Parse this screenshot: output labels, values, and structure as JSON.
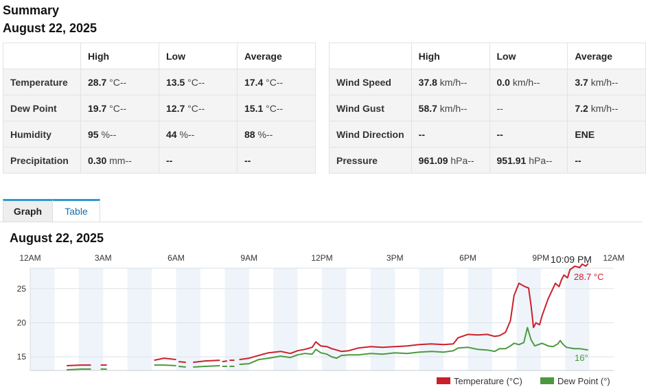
{
  "summary": {
    "title": "Summary",
    "date": "August 22, 2025",
    "columns": [
      "High",
      "Low",
      "Average"
    ],
    "left_rows": [
      {
        "label": "Temperature",
        "high": {
          "v": "28.7",
          "u": "°C--"
        },
        "low": {
          "v": "13.5",
          "u": "°C--"
        },
        "avg": {
          "v": "17.4",
          "u": "°C--"
        }
      },
      {
        "label": "Dew Point",
        "high": {
          "v": "19.7",
          "u": "°C--"
        },
        "low": {
          "v": "12.7",
          "u": "°C--"
        },
        "avg": {
          "v": "15.1",
          "u": "°C--"
        }
      },
      {
        "label": "Humidity",
        "high": {
          "v": "95",
          "u": "%--"
        },
        "low": {
          "v": "44",
          "u": "%--"
        },
        "avg": {
          "v": "88",
          "u": "%--"
        }
      },
      {
        "label": "Precipitation",
        "high": {
          "v": "0.30",
          "u": "mm--"
        },
        "low": {
          "v": "--",
          "u": ""
        },
        "avg": {
          "v": "--",
          "u": ""
        }
      }
    ],
    "right_rows": [
      {
        "label": "Wind Speed",
        "high": {
          "v": "37.8",
          "u": "km/h--"
        },
        "low": {
          "v": "0.0",
          "u": "km/h--"
        },
        "avg": {
          "v": "3.7",
          "u": "km/h--"
        }
      },
      {
        "label": "Wind Gust",
        "high": {
          "v": "58.7",
          "u": "km/h--"
        },
        "low": {
          "v": "",
          "u": "--"
        },
        "avg": {
          "v": "7.2",
          "u": "km/h--"
        }
      },
      {
        "label": "Wind Direction",
        "high": {
          "v": "--",
          "u": ""
        },
        "low": {
          "v": "--",
          "u": ""
        },
        "avg": {
          "v": "ENE",
          "u": ""
        }
      },
      {
        "label": "Pressure",
        "high": {
          "v": "961.09",
          "u": "hPa--"
        },
        "low": {
          "v": "951.91",
          "u": "hPa--"
        },
        "avg": {
          "v": "--",
          "u": ""
        }
      }
    ]
  },
  "tabs": {
    "graph": "Graph",
    "table": "Table",
    "active": "Graph"
  },
  "graph": {
    "title": "August 22, 2025",
    "time_labels": [
      "12AM",
      "3AM",
      "6AM",
      "9AM",
      "12PM",
      "3PM",
      "6PM",
      "9PM",
      "12AM"
    ],
    "current_time": "10:09 PM",
    "temp_end_label": "28.7 °C",
    "dew_end_label": "16°",
    "legend": {
      "temperature": "Temperature (°C)",
      "dew_point": "Dew Point (°)"
    },
    "colors": {
      "temperature": "#cc1f2a",
      "dew_point": "#4a9a3c",
      "band": "#eef4fa"
    }
  },
  "chart_data": {
    "type": "line",
    "x_unit": "hours since 12AM",
    "xlim": [
      0,
      24
    ],
    "ylim": [
      13,
      28
    ],
    "yticks": [
      15,
      20,
      25
    ],
    "series": [
      {
        "name": "Temperature (°C)",
        "color": "#cc1f2a",
        "segments": [
          [
            [
              1.5,
              13.7
            ],
            [
              2.1,
              13.8
            ],
            [
              2.5,
              13.8
            ]
          ],
          [
            [
              2.9,
              13.8
            ],
            [
              3.15,
              13.8
            ]
          ],
          [
            [
              5.1,
              14.5
            ],
            [
              5.5,
              14.8
            ],
            [
              6.0,
              14.6
            ]
          ],
          [
            [
              6.1,
              14.3
            ],
            [
              6.4,
              14.2
            ]
          ],
          [
            [
              6.7,
              14.2
            ],
            [
              7.2,
              14.4
            ],
            [
              7.8,
              14.5
            ]
          ],
          [
            [
              7.9,
              14.3
            ],
            [
              8.1,
              14.4
            ]
          ],
          [
            [
              8.2,
              14.5
            ],
            [
              8.4,
              14.5
            ]
          ],
          [
            [
              8.6,
              14.6
            ],
            [
              9.0,
              14.8
            ],
            [
              9.4,
              15.2
            ],
            [
              9.8,
              15.6
            ],
            [
              10.3,
              15.8
            ],
            [
              10.7,
              15.5
            ],
            [
              11.0,
              15.9
            ],
            [
              11.3,
              16.1
            ],
            [
              11.6,
              16.4
            ],
            [
              11.75,
              17.2
            ],
            [
              11.95,
              16.6
            ],
            [
              12.2,
              16.5
            ],
            [
              12.4,
              16.2
            ],
            [
              12.6,
              16.0
            ],
            [
              12.8,
              15.8
            ],
            [
              13.1,
              15.9
            ],
            [
              13.5,
              16.3
            ],
            [
              14.0,
              16.5
            ],
            [
              14.5,
              16.4
            ],
            [
              15.0,
              16.5
            ],
            [
              15.5,
              16.6
            ],
            [
              16.0,
              16.8
            ],
            [
              16.5,
              16.9
            ],
            [
              17.0,
              16.8
            ],
            [
              17.4,
              16.9
            ],
            [
              17.6,
              17.8
            ],
            [
              18.0,
              18.3
            ],
            [
              18.4,
              18.2
            ],
            [
              18.8,
              18.3
            ],
            [
              19.1,
              18.0
            ],
            [
              19.3,
              18.1
            ],
            [
              19.55,
              18.6
            ],
            [
              19.75,
              20.3
            ],
            [
              19.9,
              24.0
            ],
            [
              20.1,
              25.8
            ],
            [
              20.35,
              25.3
            ],
            [
              20.5,
              25.1
            ],
            [
              20.6,
              22.5
            ],
            [
              20.7,
              19.3
            ],
            [
              20.8,
              20.0
            ],
            [
              20.95,
              19.7
            ],
            [
              21.05,
              21.0
            ],
            [
              21.3,
              23.5
            ],
            [
              21.6,
              25.8
            ],
            [
              21.75,
              25.3
            ],
            [
              21.85,
              26.3
            ],
            [
              21.95,
              27.0
            ],
            [
              22.1,
              26.6
            ],
            [
              22.2,
              27.8
            ],
            [
              22.4,
              28.3
            ],
            [
              22.5,
              28.2
            ],
            [
              22.6,
              28.1
            ],
            [
              22.7,
              28.6
            ],
            [
              22.85,
              28.3
            ],
            [
              22.95,
              28.7
            ]
          ]
        ]
      },
      {
        "name": "Dew Point (°)",
        "color": "#4a9a3c",
        "segments": [
          [
            [
              1.5,
              13.1
            ],
            [
              2.1,
              13.2
            ],
            [
              2.5,
              13.2
            ]
          ],
          [
            [
              2.9,
              13.2
            ],
            [
              3.15,
              13.2
            ]
          ],
          [
            [
              5.1,
              13.8
            ],
            [
              5.5,
              13.8
            ],
            [
              6.0,
              13.7
            ]
          ],
          [
            [
              6.1,
              13.6
            ],
            [
              6.4,
              13.5
            ]
          ],
          [
            [
              6.7,
              13.5
            ],
            [
              7.2,
              13.6
            ],
            [
              7.8,
              13.7
            ]
          ],
          [
            [
              7.9,
              13.6
            ],
            [
              8.1,
              13.6
            ]
          ],
          [
            [
              8.2,
              13.6
            ],
            [
              8.4,
              13.6
            ]
          ],
          [
            [
              8.6,
              13.9
            ],
            [
              9.0,
              14.0
            ],
            [
              9.4,
              14.6
            ],
            [
              9.8,
              14.8
            ],
            [
              10.3,
              15.1
            ],
            [
              10.7,
              14.9
            ],
            [
              11.0,
              15.3
            ],
            [
              11.3,
              15.5
            ],
            [
              11.6,
              15.4
            ],
            [
              11.75,
              16.1
            ],
            [
              11.95,
              15.6
            ],
            [
              12.2,
              15.4
            ],
            [
              12.4,
              15.0
            ],
            [
              12.6,
              14.8
            ],
            [
              12.8,
              15.2
            ],
            [
              13.1,
              15.3
            ],
            [
              13.5,
              15.3
            ],
            [
              14.0,
              15.5
            ],
            [
              14.5,
              15.4
            ],
            [
              15.0,
              15.6
            ],
            [
              15.5,
              15.5
            ],
            [
              16.0,
              15.7
            ],
            [
              16.5,
              15.8
            ],
            [
              17.0,
              15.7
            ],
            [
              17.4,
              15.9
            ],
            [
              17.6,
              16.3
            ],
            [
              18.0,
              16.4
            ],
            [
              18.4,
              16.1
            ],
            [
              18.8,
              16.0
            ],
            [
              19.1,
              15.8
            ],
            [
              19.3,
              16.2
            ],
            [
              19.55,
              16.2
            ],
            [
              19.75,
              16.6
            ],
            [
              19.9,
              17.0
            ],
            [
              20.1,
              16.8
            ],
            [
              20.3,
              17.1
            ],
            [
              20.45,
              19.3
            ],
            [
              20.6,
              17.5
            ],
            [
              20.75,
              16.6
            ],
            [
              20.9,
              16.8
            ],
            [
              21.05,
              17.0
            ],
            [
              21.3,
              16.6
            ],
            [
              21.5,
              16.5
            ],
            [
              21.7,
              16.9
            ],
            [
              21.8,
              17.4
            ],
            [
              21.9,
              16.9
            ],
            [
              22.05,
              16.4
            ],
            [
              22.2,
              16.3
            ],
            [
              22.4,
              16.2
            ],
            [
              22.6,
              16.2
            ],
            [
              22.95,
              16.0
            ]
          ]
        ]
      }
    ]
  }
}
